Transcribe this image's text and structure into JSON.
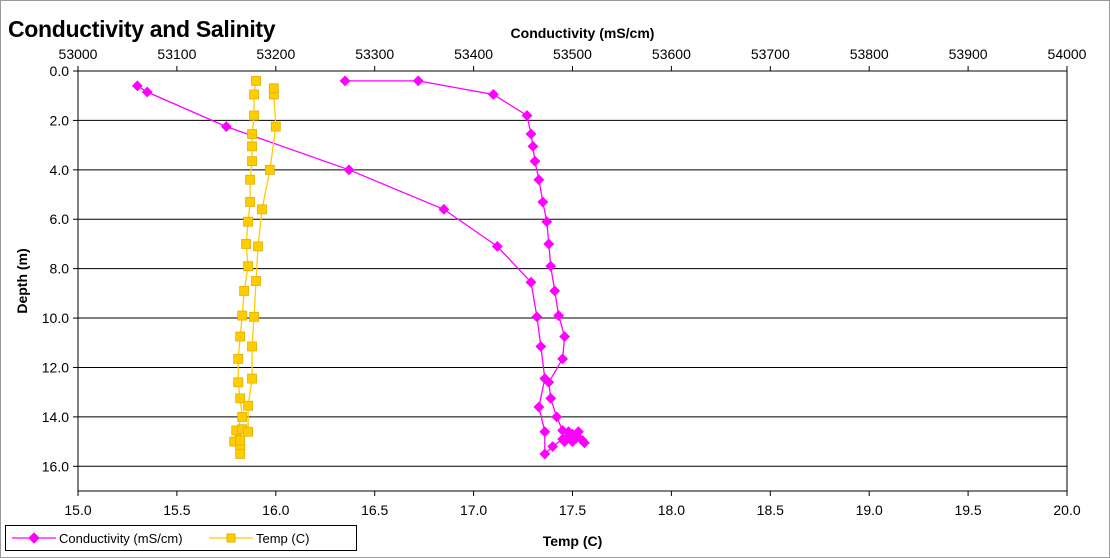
{
  "chart_data": {
    "type": "scatter",
    "title": "Conductivity and Salinity",
    "x_bottom": {
      "label": "Temp (C)",
      "min": 15.0,
      "max": 20.0,
      "step": 0.5,
      "ticks": [
        "15.0",
        "15.5",
        "16.0",
        "16.5",
        "17.0",
        "17.5",
        "18.0",
        "18.5",
        "19.0",
        "19.5",
        "20.0"
      ]
    },
    "x_top": {
      "label": "Conductivity (mS/cm)",
      "min": 53000,
      "max": 54000,
      "step": 100,
      "ticks": [
        "53000",
        "53100",
        "53200",
        "53300",
        "53400",
        "53500",
        "53600",
        "53700",
        "53800",
        "53900",
        "54000"
      ]
    },
    "y": {
      "label": "Depth (m)",
      "min": 0.0,
      "max": 17.0,
      "step": 2.0,
      "inverted": true,
      "ticks": [
        "0.0",
        "2.0",
        "4.0",
        "6.0",
        "8.0",
        "10.0",
        "12.0",
        "14.0",
        "16.0"
      ]
    },
    "grid": "horizontal",
    "series": [
      {
        "name": "Conductivity (mS/cm)",
        "axis": "bottom",
        "color": "#ff00ff",
        "marker": "diamond",
        "points": [
          [
            16.35,
            0.4
          ],
          [
            16.72,
            0.4
          ],
          [
            17.1,
            0.95
          ],
          [
            17.27,
            1.8
          ],
          [
            17.29,
            2.55
          ],
          [
            17.3,
            3.05
          ],
          [
            17.31,
            3.65
          ],
          [
            17.33,
            4.4
          ],
          [
            17.35,
            5.3
          ],
          [
            17.37,
            6.1
          ],
          [
            17.38,
            7.0
          ],
          [
            17.39,
            7.9
          ],
          [
            17.41,
            8.9
          ],
          [
            17.43,
            9.9
          ],
          [
            17.46,
            10.75
          ],
          [
            17.45,
            11.65
          ],
          [
            17.38,
            12.6
          ],
          [
            17.39,
            13.25
          ],
          [
            17.42,
            14.0
          ],
          [
            17.45,
            14.55
          ],
          [
            17.46,
            15.0
          ],
          [
            17.48,
            14.6
          ],
          [
            17.5,
            15.0
          ],
          [
            17.53,
            14.6
          ],
          [
            17.56,
            15.05
          ],
          [
            17.52,
            14.85
          ],
          [
            17.5,
            14.7
          ],
          [
            17.55,
            14.95
          ],
          [
            17.47,
            14.85
          ],
          [
            17.45,
            14.9
          ],
          [
            17.4,
            15.2
          ],
          [
            17.36,
            15.5
          ],
          [
            17.36,
            14.6
          ],
          [
            17.33,
            13.6
          ],
          [
            17.36,
            12.45
          ],
          [
            17.34,
            11.15
          ],
          [
            17.32,
            9.95
          ],
          [
            17.29,
            8.55
          ],
          [
            17.12,
            7.1
          ],
          [
            16.85,
            5.6
          ],
          [
            16.37,
            4.0
          ],
          [
            15.75,
            2.25
          ],
          [
            15.35,
            0.85
          ],
          [
            15.3,
            0.6
          ]
        ]
      },
      {
        "name": "Temp (C)",
        "axis": "bottom",
        "color": "#ffcc00",
        "marker": "square",
        "points": [
          [
            15.9,
            0.4
          ],
          [
            15.89,
            0.95
          ],
          [
            15.89,
            1.8
          ],
          [
            15.88,
            2.55
          ],
          [
            15.88,
            3.05
          ],
          [
            15.88,
            3.65
          ],
          [
            15.87,
            4.4
          ],
          [
            15.87,
            5.3
          ],
          [
            15.86,
            6.1
          ],
          [
            15.85,
            7.0
          ],
          [
            15.86,
            7.9
          ],
          [
            15.84,
            8.9
          ],
          [
            15.83,
            9.9
          ],
          [
            15.82,
            10.75
          ],
          [
            15.81,
            11.65
          ],
          [
            15.81,
            12.6
          ],
          [
            15.82,
            13.25
          ],
          [
            15.83,
            14.0
          ],
          [
            15.8,
            14.55
          ],
          [
            15.79,
            15.0
          ],
          [
            15.82,
            15.15
          ],
          [
            15.82,
            15.5
          ],
          [
            15.82,
            14.95
          ],
          [
            15.83,
            14.5
          ],
          [
            15.86,
            14.6
          ],
          [
            15.86,
            13.55
          ],
          [
            15.88,
            12.45
          ],
          [
            15.88,
            11.15
          ],
          [
            15.89,
            9.95
          ],
          [
            15.9,
            8.5
          ],
          [
            15.91,
            7.1
          ],
          [
            15.93,
            5.6
          ],
          [
            15.97,
            4.0
          ],
          [
            16.0,
            2.25
          ],
          [
            15.99,
            0.95
          ],
          [
            15.99,
            0.7
          ]
        ]
      }
    ]
  },
  "legend": {
    "items": [
      {
        "label": "Conductivity (mS/cm)",
        "color": "#ff00ff",
        "marker": "diamond"
      },
      {
        "label": "Temp (C)",
        "color": "#ffcc00",
        "marker": "square"
      }
    ]
  }
}
